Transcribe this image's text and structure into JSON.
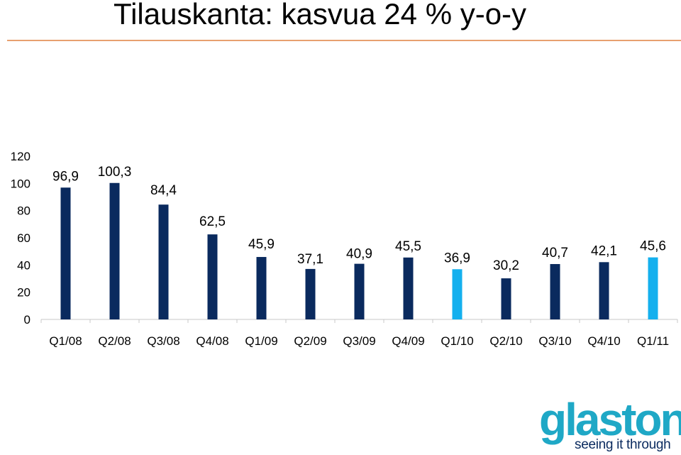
{
  "title": "Tilauskanta: kasvua 24 % y-o-y",
  "logo": {
    "word": "glaston",
    "tagline": "seeing it through"
  },
  "colors": {
    "bar_primary": "#0a2a5e",
    "bar_highlight": "#14b0ee",
    "title_rule": "#e8a070",
    "brand": "#1fa8c6"
  },
  "chart_data": {
    "type": "bar",
    "categories": [
      "Q1/08",
      "Q2/08",
      "Q3/08",
      "Q4/08",
      "Q1/09",
      "Q2/09",
      "Q3/09",
      "Q4/09",
      "Q1/10",
      "Q2/10",
      "Q3/10",
      "Q4/10",
      "Q1/11"
    ],
    "values": [
      96.9,
      100.3,
      84.4,
      62.5,
      45.9,
      37.1,
      40.9,
      45.5,
      36.9,
      30.2,
      40.7,
      42.1,
      45.6
    ],
    "data_labels": [
      "96,9",
      "100,3",
      "84,4",
      "62,5",
      "45,9",
      "37,1",
      "40,9",
      "45,5",
      "36,9",
      "30,2",
      "40,7",
      "42,1",
      "45,6"
    ],
    "highlighted_categories": [
      "Q1/10",
      "Q1/11"
    ],
    "yticks": [
      "0",
      "20",
      "40",
      "60",
      "80",
      "100",
      "120"
    ],
    "ylim": [
      0,
      120
    ],
    "grid": false
  }
}
